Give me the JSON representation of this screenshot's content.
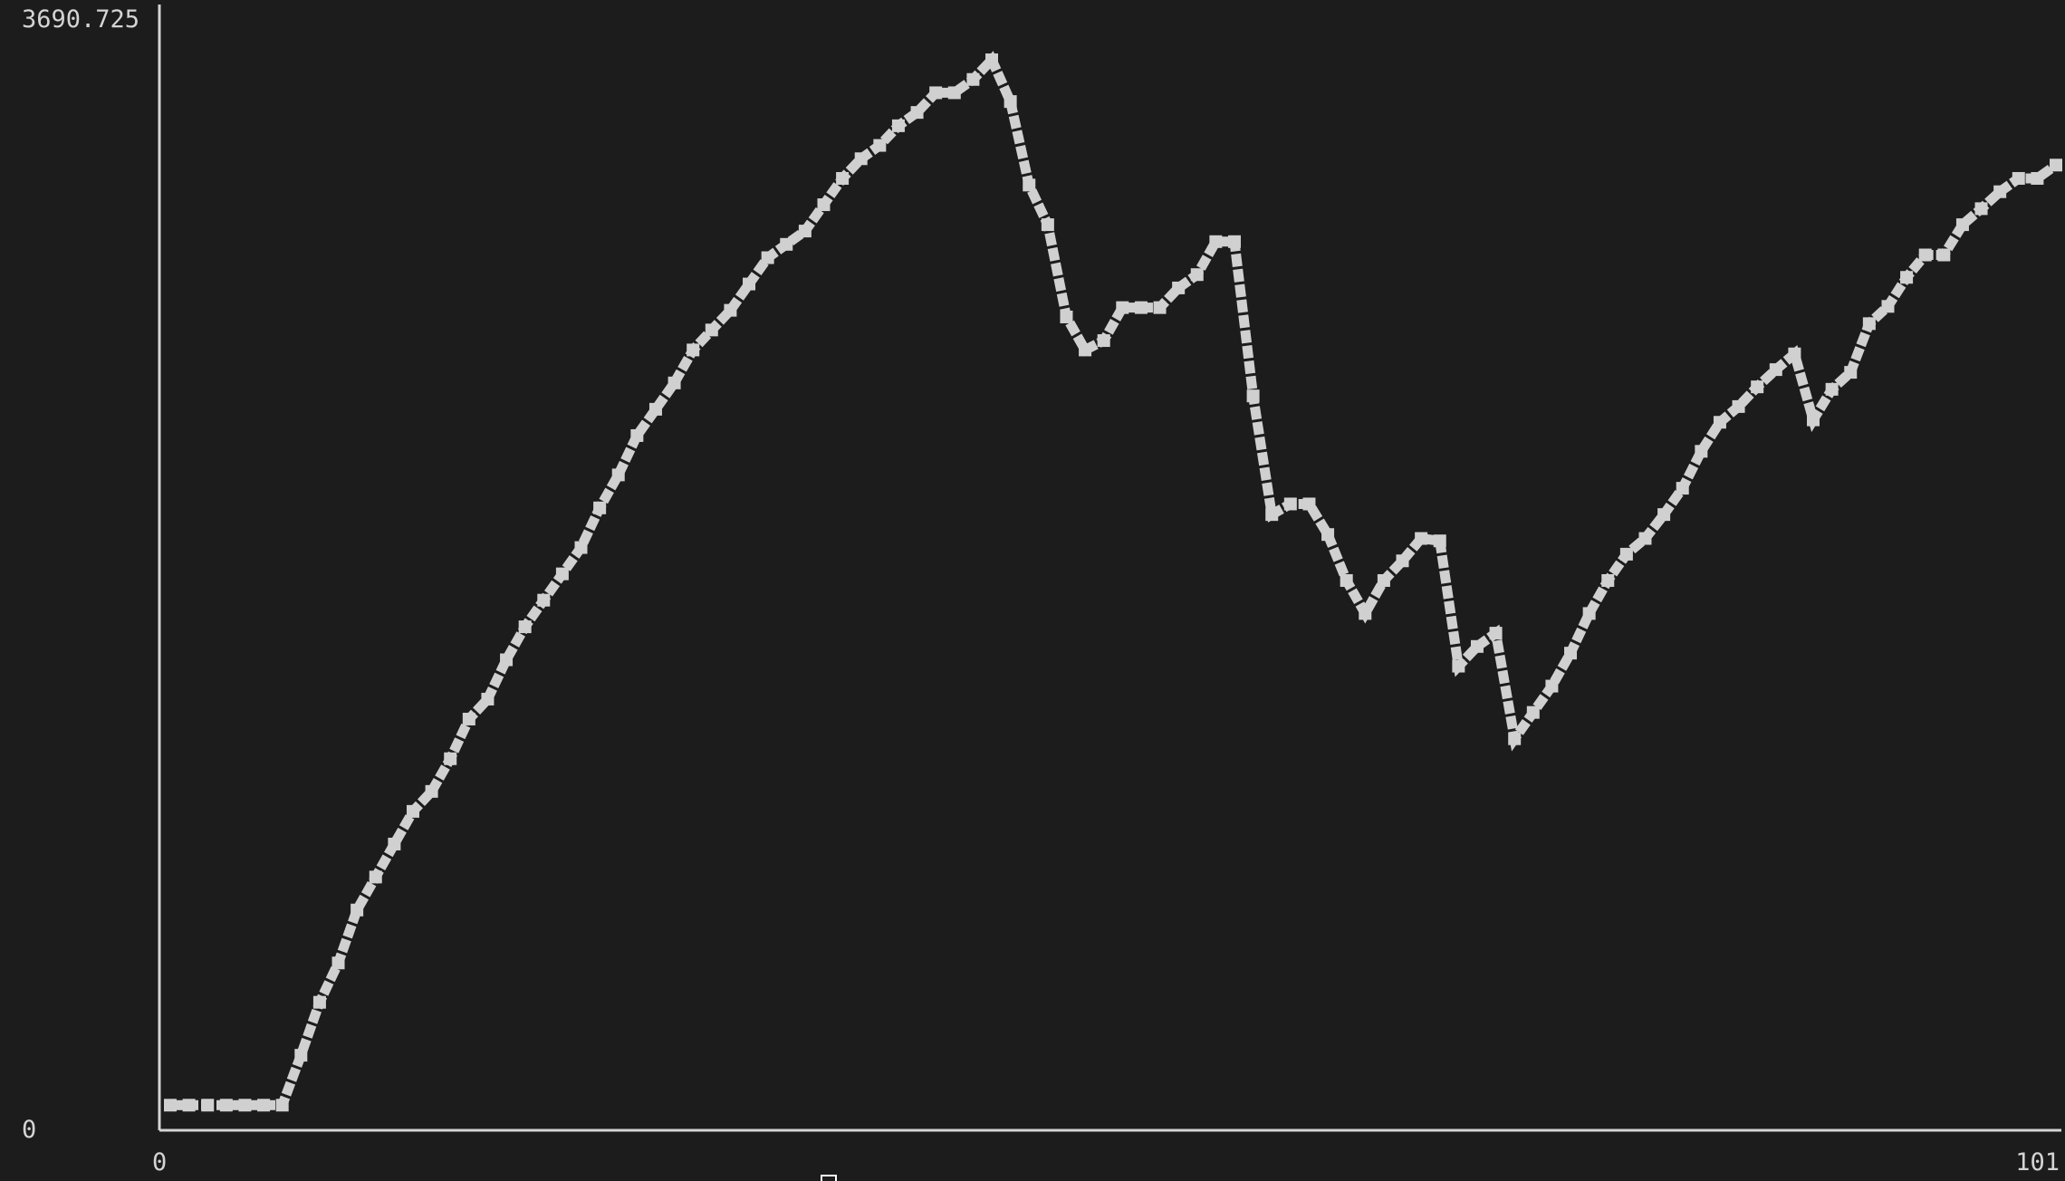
{
  "chart_data": {
    "type": "line",
    "title": "",
    "xlabel": "",
    "ylabel": "",
    "xlim": [
      0,
      101
    ],
    "ylim": [
      0,
      3690.725
    ],
    "y_tick_labels": {
      "top": "3690.725",
      "bottom": "0"
    },
    "x_tick_labels": {
      "left": "0",
      "right": "101"
    },
    "grid": false,
    "line_color": "#d0d0d0",
    "background": "#1c1c1c",
    "x": [
      0,
      1,
      2,
      3,
      4,
      5,
      6,
      7,
      8,
      9,
      10,
      11,
      12,
      13,
      14,
      15,
      16,
      17,
      18,
      19,
      20,
      21,
      22,
      23,
      24,
      25,
      26,
      27,
      28,
      29,
      30,
      31,
      32,
      33,
      34,
      35,
      36,
      37,
      38,
      39,
      40,
      41,
      42,
      43,
      44,
      45,
      46,
      47,
      48,
      49,
      50,
      51,
      52,
      53,
      54,
      55,
      56,
      57,
      58,
      59,
      60,
      61,
      62,
      63,
      64,
      65,
      66,
      67,
      68,
      69,
      70,
      71,
      72,
      73,
      74,
      75,
      76,
      77,
      78,
      79,
      80,
      81,
      82,
      83,
      84,
      85,
      86,
      87,
      88,
      89,
      90,
      91,
      92,
      93,
      94,
      95,
      96,
      97,
      98,
      99,
      100,
      101
    ],
    "values": [
      83,
      83,
      83,
      83,
      83,
      83,
      83,
      248,
      423,
      553,
      728,
      837,
      946,
      1054,
      1120,
      1228,
      1359,
      1425,
      1555,
      1664,
      1752,
      1839,
      1926,
      2057,
      2166,
      2296,
      2383,
      2470,
      2579,
      2645,
      2710,
      2797,
      2884,
      2928,
      2972,
      3059,
      3146,
      3211,
      3255,
      3320,
      3364,
      3429,
      3429,
      3473,
      3538,
      3400,
      3124,
      2993,
      2688,
      2579,
      2610,
      2719,
      2719,
      2719,
      2784,
      2828,
      2937,
      2937,
      2427,
      2035,
      2070,
      2070,
      1969,
      1817,
      1708,
      1817,
      1882,
      1956,
      1948,
      1534,
      1599,
      1643,
      1294,
      1381,
      1468,
      1577,
      1708,
      1817,
      1904,
      1956,
      2035,
      2122,
      2244,
      2340,
      2392,
      2457,
      2514,
      2566,
      2348,
      2449,
      2505,
      2666,
      2723,
      2819,
      2893,
      2893,
      2993,
      3046,
      3102,
      3146,
      3146,
      3190
    ]
  },
  "cursor_icon": "cursor-block-icon"
}
